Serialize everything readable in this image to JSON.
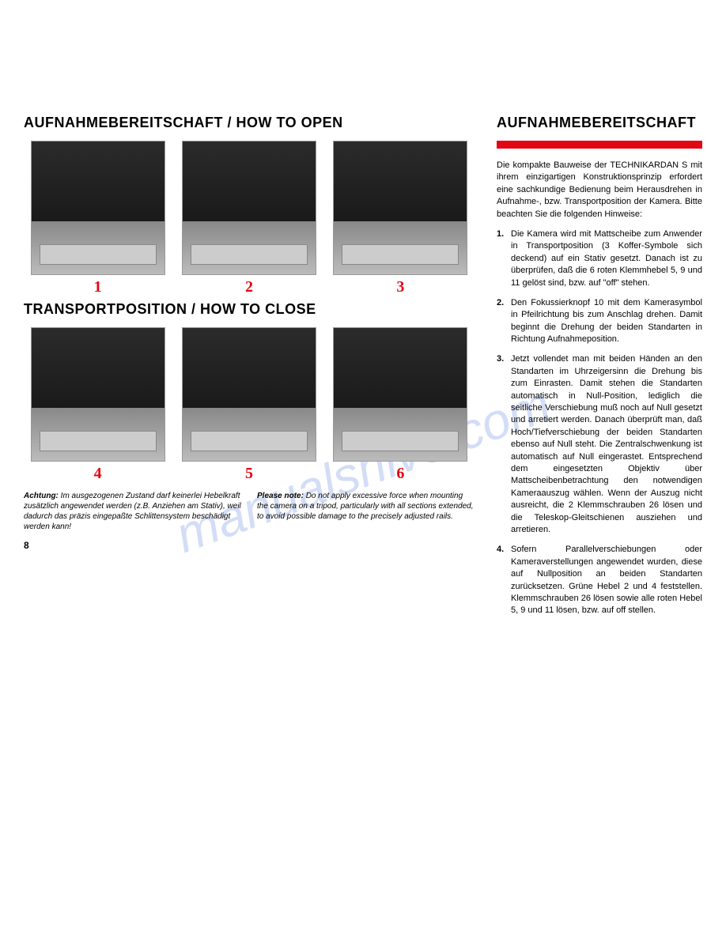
{
  "left": {
    "title_open": "AUFNAHMEBEREITSCHAFT / HOW TO OPEN",
    "title_close": "TRANSPORTPOSITION / HOW TO CLOSE",
    "figures_open": [
      "1",
      "2",
      "3"
    ],
    "figures_close": [
      "4",
      "5",
      "6"
    ],
    "note_de_label": "Achtung:",
    "note_de": " Im ausgezogenen Zustand darf keinerlei Hebelkraft zusätzlich angewendet werden (z.B. Anziehen am Stativ), weil dadurch das präzis eingepaßte Schlittensystem beschädigt werden kann!",
    "note_en_label": "Please note:",
    "note_en": " Do not apply excessive force when mounting the camera on a tripod, particularly with all sections extended, to avoid possible damage to the precisely adjusted rails.",
    "page_number": "8"
  },
  "right": {
    "title": "AUFNAHMEBEREITSCHAFT",
    "intro": "Die kompakte Bauweise der TECHNIKARDAN S mit ihrem einzigartigen Konstruktionsprinzip erfordert eine sachkundige Bedienung beim Herausdrehen in Aufnahme-, bzw. Transportposition der Kamera. Bitte beachten Sie die folgenden Hinweise:",
    "steps": [
      {
        "n": "1.",
        "t": "Die Kamera wird mit Mattscheibe zum Anwender in Transportposition (3 Koffer-Symbole sich deckend) auf ein Stativ gesetzt. Danach ist zu überprüfen, daß die 6 roten Klemmhebel 5, 9 und 11 gelöst sind, bzw. auf \"off\" stehen."
      },
      {
        "n": "2.",
        "t": "Den Fokussierknopf 10 mit dem Kamerasymbol in Pfeilrichtung bis zum Anschlag drehen. Damit beginnt die Drehung der beiden Standarten in Richtung Aufnahmeposition."
      },
      {
        "n": "3.",
        "t": "Jetzt vollendet man mit beiden Händen an den Standarten im Uhrzeigersinn die Drehung bis zum Einrasten. Damit stehen die Standarten automatisch in Null-Position, lediglich die seitliche Verschiebung muß noch auf Null gesetzt und arretiert werden. Danach überprüft man, daß Hoch/Tiefverschiebung der beiden Standarten ebenso auf Null steht. Die Zentralschwenkung ist automatisch auf Null eingerastet.\nEntsprechend dem eingesetzten Objektiv über Mattscheibenbetrachtung den notwendigen Kameraauszug wählen. Wenn der Auszug nicht ausreicht, die 2 Klemmschrauben 26 lösen und die Teleskop-Gleitschienen ausziehen und arretieren."
      },
      {
        "n": "4.",
        "t": "Sofern Parallelverschiebungen oder Kameraverstellungen angewendet wurden, diese auf Nullposition an beiden Standarten zurücksetzen.\nGrüne Hebel 2 und 4 feststellen. Klemmschrauben 26 lösen sowie alle roten Hebel 5, 9 und 11 lösen, bzw. auf off stellen."
      }
    ]
  },
  "watermark": "manualshive.com",
  "colors": {
    "red": "#e30613"
  }
}
